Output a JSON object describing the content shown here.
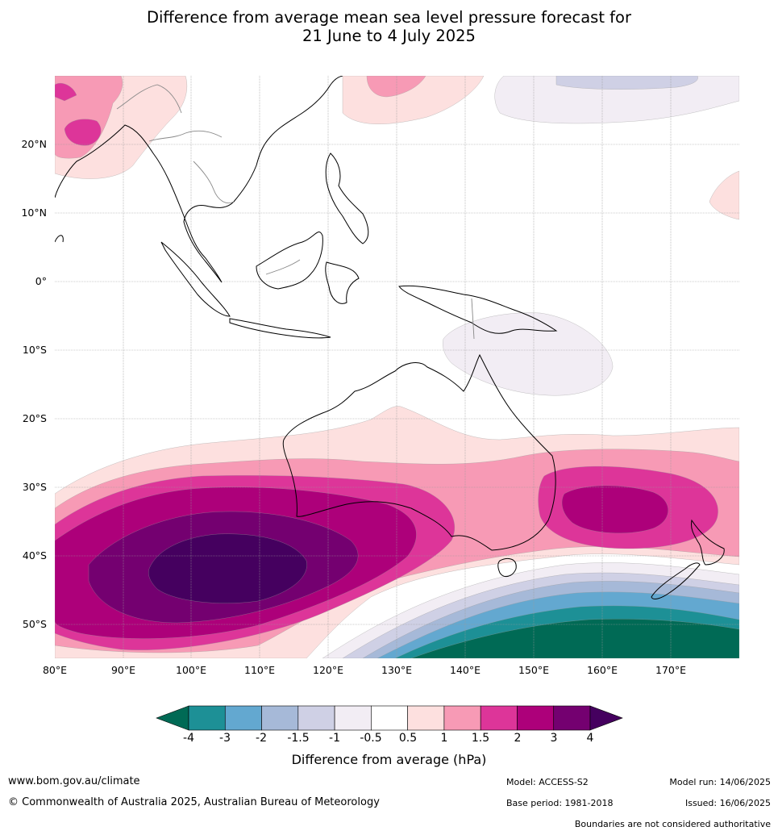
{
  "title_line1": "Difference from average mean sea level pressure forecast for",
  "title_line2": "21 June to 4 July 2025",
  "map": {
    "lat_labels": [
      "20°N",
      "10°N",
      "0°",
      "10°S",
      "20°S",
      "30°S",
      "40°S",
      "50°S"
    ],
    "lon_labels": [
      "80°E",
      "90°E",
      "100°E",
      "110°E",
      "120°E",
      "130°E",
      "140°E",
      "150°E",
      "160°E",
      "170°E"
    ]
  },
  "colorbar": {
    "title": "Difference from average (hPa)",
    "ticks": [
      "-4",
      "-3",
      "-2",
      "-1.5",
      "-1",
      "-0.5",
      "0.5",
      "1",
      "1.5",
      "2",
      "3",
      "4"
    ],
    "colors": [
      "#006a55",
      "#1d9096",
      "#63a8d0",
      "#a6b9d8",
      "#cfd0e5",
      "#f2edf4",
      "#ffffff",
      "#fde0df",
      "#f79ab5",
      "#dd3599",
      "#ad007a",
      "#740070",
      "#45005f"
    ]
  },
  "footer": {
    "url": "www.bom.gov.au/climate",
    "copyright": "© Commonwealth of Australia 2025, Australian Bureau of Meteorology",
    "model": "Model: ACCESS-S2",
    "base_period": "Base period: 1981-2018",
    "model_run": "Model run: 14/06/2025",
    "issued": "Issued: 16/06/2025",
    "disclaimer": "Boundaries are not considered authoritative"
  }
}
